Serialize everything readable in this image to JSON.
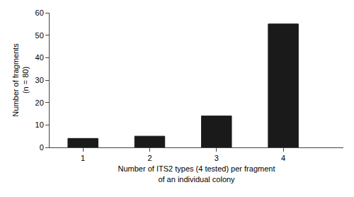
{
  "chart_data": {
    "type": "bar",
    "categories": [
      1,
      2,
      3,
      4
    ],
    "values": [
      4,
      5,
      14,
      55
    ],
    "color": "#1a1a1a",
    "xlabel": "Number of ITS2 types (4 tested) per fragment\nof an individual colony",
    "ylabel": "Number of fragments\n(n = 80)",
    "xlim": [
      0.5,
      4.9
    ],
    "xticks": [
      1,
      2,
      3,
      4
    ],
    "ylim": [
      0,
      60
    ],
    "yticks": [
      0,
      10,
      20,
      30,
      40,
      50,
      60
    ],
    "grid": false
  }
}
